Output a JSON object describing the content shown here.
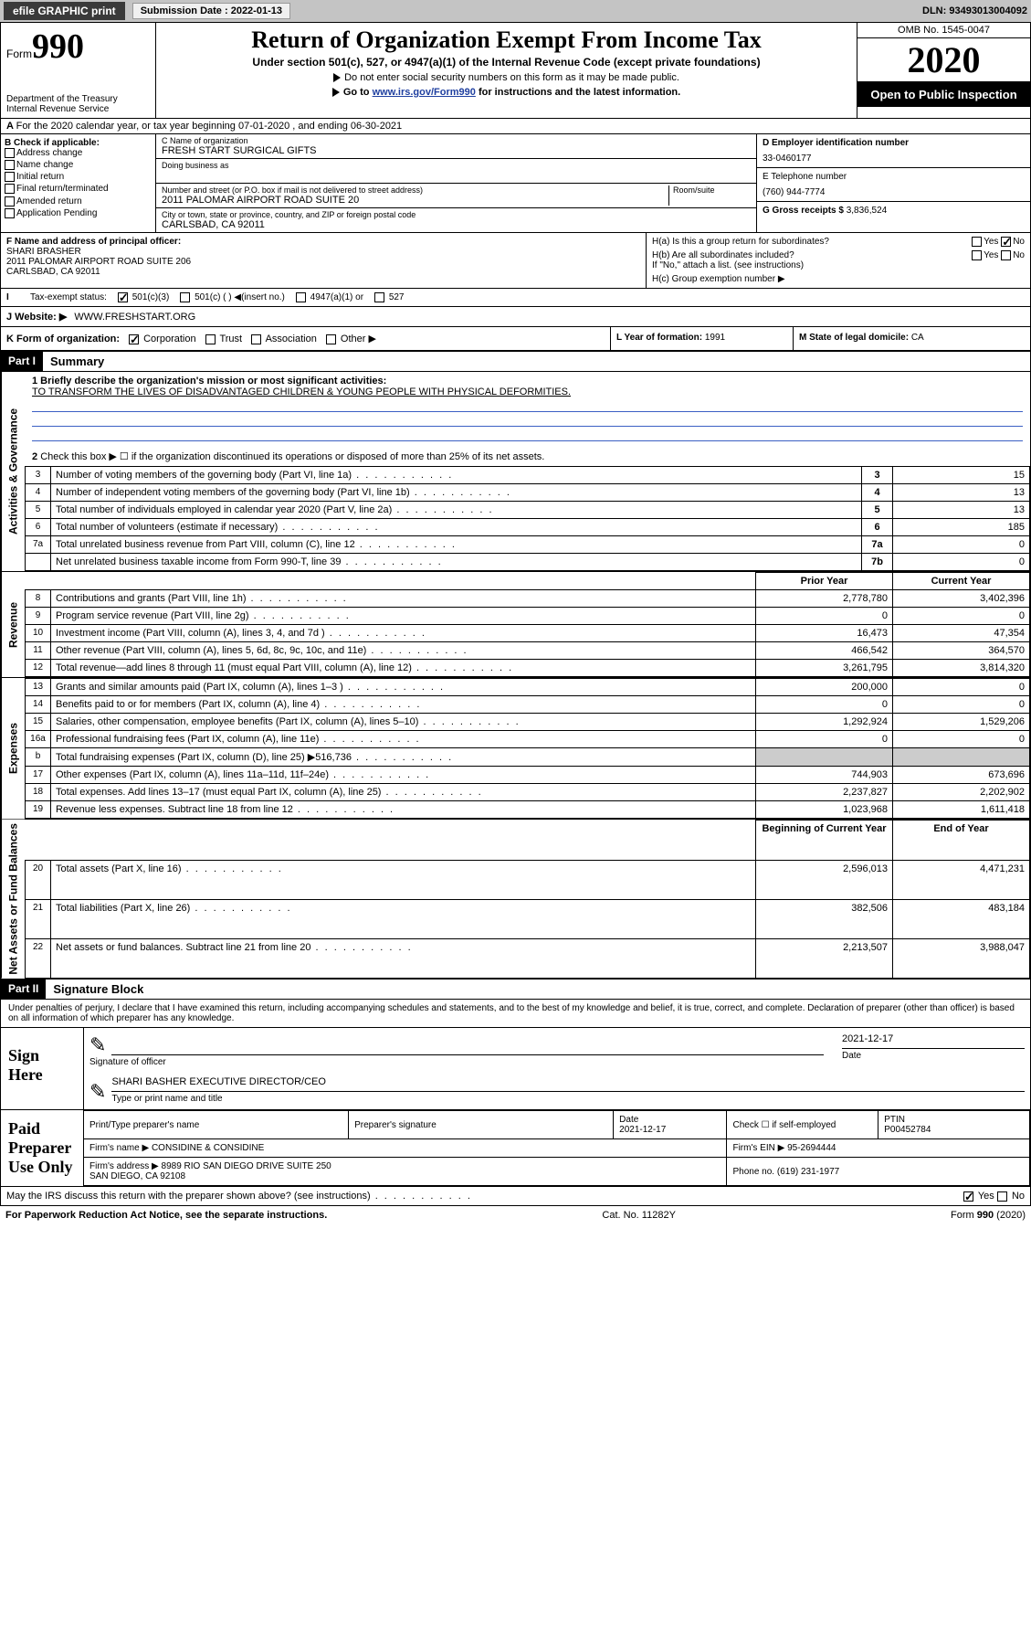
{
  "topbar": {
    "efile": "efile GRAPHIC print",
    "submission_label": "Submission Date : 2022-01-13",
    "dln": "DLN: 93493013004092"
  },
  "header": {
    "form_word": "Form",
    "form_num": "990",
    "dept": "Department of the Treasury\nInternal Revenue Service",
    "title": "Return of Organization Exempt From Income Tax",
    "subtitle": "Under section 501(c), 527, or 4947(a)(1) of the Internal Revenue Code (except private foundations)",
    "note1": "Do not enter social security numbers on this form as it may be made public.",
    "note2_pre": "Go to ",
    "note2_link": "www.irs.gov/Form990",
    "note2_post": " for instructions and the latest information.",
    "omb": "OMB No. 1545-0047",
    "year": "2020",
    "open": "Open to Public Inspection"
  },
  "line_a": "For the 2020 calendar year, or tax year beginning 07-01-2020   , and ending 06-30-2021",
  "box_b": {
    "title": "B Check if applicable:",
    "opts": [
      "Address change",
      "Name change",
      "Initial return",
      "Final return/terminated",
      "Amended return",
      "Application Pending"
    ]
  },
  "box_c": {
    "name_lbl": "C Name of organization",
    "name": "FRESH START SURGICAL GIFTS",
    "dba_lbl": "Doing business as",
    "addr_lbl": "Number and street (or P.O. box if mail is not delivered to street address)",
    "room_lbl": "Room/suite",
    "addr": "2011 PALOMAR AIRPORT ROAD SUITE 20",
    "city_lbl": "City or town, state or province, country, and ZIP or foreign postal code",
    "city": "CARLSBAD, CA  92011"
  },
  "box_d": {
    "lbl": "D Employer identification number",
    "val": "33-0460177"
  },
  "box_e": {
    "lbl": "E Telephone number",
    "val": "(760) 944-7774"
  },
  "box_g": {
    "lbl": "G Gross receipts $",
    "val": "3,836,524"
  },
  "box_f": {
    "lbl": "F  Name and address of principal officer:",
    "name": "SHARI BRASHER",
    "addr1": "2011 PALOMAR AIRPORT ROAD SUITE 206",
    "addr2": "CARLSBAD, CA  92011"
  },
  "box_h": {
    "ha": "H(a)  Is this a group return for subordinates?",
    "hb": "H(b)  Are all subordinates included?",
    "hb_note": "If \"No,\" attach a list. (see instructions)",
    "hc": "H(c)  Group exemption number ▶",
    "yes": "Yes",
    "no": "No"
  },
  "tax_status": {
    "lbl": "Tax-exempt status:",
    "o1": "501(c)(3)",
    "o2": "501(c) (  ) ◀(insert no.)",
    "o3": "4947(a)(1) or",
    "o4": "527"
  },
  "website": {
    "lbl": "J    Website: ▶",
    "val": "WWW.FRESHSTART.ORG"
  },
  "row_k": {
    "lbl": "K Form of organization:",
    "opts": [
      "Corporation",
      "Trust",
      "Association",
      "Other ▶"
    ],
    "l_lbl": "L Year of formation:",
    "l_val": "1991",
    "m_lbl": "M State of legal domicile:",
    "m_val": "CA"
  },
  "part1": {
    "tag": "Part I",
    "title": "Summary",
    "vtab1": "Activities & Governance",
    "vtab2": "Revenue",
    "vtab3": "Expenses",
    "vtab4": "Net Assets or Fund Balances",
    "q1_lbl": "1  Briefly describe the organization's mission or most significant activities:",
    "q1_val": "TO TRANSFORM THE LIVES OF DISADVANTAGED CHILDREN & YOUNG PEOPLE WITH PHYSICAL DEFORMITIES.",
    "q2": "Check this box ▶ ☐  if the organization discontinued its operations or disposed of more than 25% of its net assets.",
    "rows_gov": [
      {
        "n": "3",
        "t": "Number of voting members of the governing body (Part VI, line 1a)",
        "i": "3",
        "v": "15"
      },
      {
        "n": "4",
        "t": "Number of independent voting members of the governing body (Part VI, line 1b)",
        "i": "4",
        "v": "13"
      },
      {
        "n": "5",
        "t": "Total number of individuals employed in calendar year 2020 (Part V, line 2a)",
        "i": "5",
        "v": "13"
      },
      {
        "n": "6",
        "t": "Total number of volunteers (estimate if necessary)",
        "i": "6",
        "v": "185"
      },
      {
        "n": "7a",
        "t": "Total unrelated business revenue from Part VIII, column (C), line 12",
        "i": "7a",
        "v": "0"
      },
      {
        "n": "",
        "t": "Net unrelated business taxable income from Form 990-T, line 39",
        "i": "7b",
        "v": "0"
      }
    ],
    "hdr_prior": "Prior Year",
    "hdr_current": "Current Year",
    "rows_rev": [
      {
        "n": "8",
        "t": "Contributions and grants (Part VIII, line 1h)",
        "p": "2,778,780",
        "c": "3,402,396"
      },
      {
        "n": "9",
        "t": "Program service revenue (Part VIII, line 2g)",
        "p": "0",
        "c": "0"
      },
      {
        "n": "10",
        "t": "Investment income (Part VIII, column (A), lines 3, 4, and 7d )",
        "p": "16,473",
        "c": "47,354"
      },
      {
        "n": "11",
        "t": "Other revenue (Part VIII, column (A), lines 5, 6d, 8c, 9c, 10c, and 11e)",
        "p": "466,542",
        "c": "364,570"
      },
      {
        "n": "12",
        "t": "Total revenue—add lines 8 through 11 (must equal Part VIII, column (A), line 12)",
        "p": "3,261,795",
        "c": "3,814,320"
      }
    ],
    "rows_exp": [
      {
        "n": "13",
        "t": "Grants and similar amounts paid (Part IX, column (A), lines 1–3 )",
        "p": "200,000",
        "c": "0"
      },
      {
        "n": "14",
        "t": "Benefits paid to or for members (Part IX, column (A), line 4)",
        "p": "0",
        "c": "0"
      },
      {
        "n": "15",
        "t": "Salaries, other compensation, employee benefits (Part IX, column (A), lines 5–10)",
        "p": "1,292,924",
        "c": "1,529,206"
      },
      {
        "n": "16a",
        "t": "Professional fundraising fees (Part IX, column (A), line 11e)",
        "p": "0",
        "c": "0"
      },
      {
        "n": "b",
        "t": "Total fundraising expenses (Part IX, column (D), line 25) ▶516,736",
        "p": "",
        "c": ""
      },
      {
        "n": "17",
        "t": "Other expenses (Part IX, column (A), lines 11a–11d, 11f–24e)",
        "p": "744,903",
        "c": "673,696"
      },
      {
        "n": "18",
        "t": "Total expenses. Add lines 13–17 (must equal Part IX, column (A), line 25)",
        "p": "2,237,827",
        "c": "2,202,902"
      },
      {
        "n": "19",
        "t": "Revenue less expenses. Subtract line 18 from line 12",
        "p": "1,023,968",
        "c": "1,611,418"
      }
    ],
    "hdr_boy": "Beginning of Current Year",
    "hdr_eoy": "End of Year",
    "rows_net": [
      {
        "n": "20",
        "t": "Total assets (Part X, line 16)",
        "p": "2,596,013",
        "c": "4,471,231"
      },
      {
        "n": "21",
        "t": "Total liabilities (Part X, line 26)",
        "p": "382,506",
        "c": "483,184"
      },
      {
        "n": "22",
        "t": "Net assets or fund balances. Subtract line 21 from line 20",
        "p": "2,213,507",
        "c": "3,988,047"
      }
    ]
  },
  "part2": {
    "tag": "Part II",
    "title": "Signature Block",
    "decl": "Under penalties of perjury, I declare that I have examined this return, including accompanying schedules and statements, and to the best of my knowledge and belief, it is true, correct, and complete. Declaration of preparer (other than officer) is based on all information of which preparer has any knowledge.",
    "sign_here": "Sign Here",
    "sig_officer": "Signature of officer",
    "date_lbl": "Date",
    "date_val": "2021-12-17",
    "name_title": "SHARI BASHER  EXECUTIVE DIRECTOR/CEO",
    "type_lbl": "Type or print name and title",
    "paid": "Paid Preparer Use Only",
    "prep_name_lbl": "Print/Type preparer's name",
    "prep_sig_lbl": "Preparer's signature",
    "prep_date_lbl": "Date",
    "prep_date": "2021-12-17",
    "check_self": "Check ☐ if self-employed",
    "ptin_lbl": "PTIN",
    "ptin": "P00452784",
    "firm_name_lbl": "Firm's name     ▶",
    "firm_name": "CONSIDINE & CONSIDINE",
    "firm_ein_lbl": "Firm's EIN ▶",
    "firm_ein": "95-2694444",
    "firm_addr_lbl": "Firm's address ▶",
    "firm_addr": "8989 RIO SAN DIEGO DRIVE SUITE 250\nSAN DIEGO, CA  92108",
    "phone_lbl": "Phone no.",
    "phone": "(619) 231-1977",
    "discuss": "May the IRS discuss this return with the preparer shown above? (see instructions)"
  },
  "footer": {
    "left": "For Paperwork Reduction Act Notice, see the separate instructions.",
    "mid": "Cat. No. 11282Y",
    "right": "Form 990 (2020)"
  }
}
